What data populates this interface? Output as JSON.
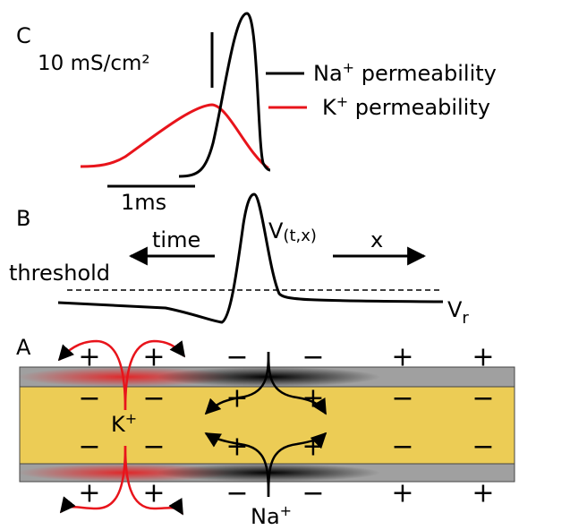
{
  "panel_c": {
    "label": "C",
    "scale_label": "10 mS/cm²",
    "time_scale": "1ms",
    "legend": [
      {
        "base": "Na",
        "sup": "+",
        "rest": " permeability"
      },
      {
        "base": "K",
        "sup": "+",
        "rest": " permeability"
      }
    ]
  },
  "panel_b": {
    "label": "B",
    "time": "time",
    "x": "x",
    "threshold": "threshold",
    "voltage": {
      "base": "V",
      "sub": "(t,x)"
    },
    "rest_voltage": {
      "base": "V",
      "sub": "r"
    }
  },
  "panel_a": {
    "label": "A",
    "outside_top": [
      "+",
      "+",
      "−",
      "−",
      "+",
      "+"
    ],
    "inside_top": [
      "−",
      "−",
      "+",
      "+",
      "−",
      "−"
    ],
    "inside_bottom": [
      "−",
      "−",
      "+",
      "+",
      "−",
      "−"
    ],
    "outside_bottom": [
      "+",
      "+",
      "−",
      "−",
      "+",
      "+"
    ],
    "potassium": {
      "base": "K",
      "sup": "+"
    },
    "sodium": {
      "base": "Na",
      "sup": "+"
    }
  }
}
